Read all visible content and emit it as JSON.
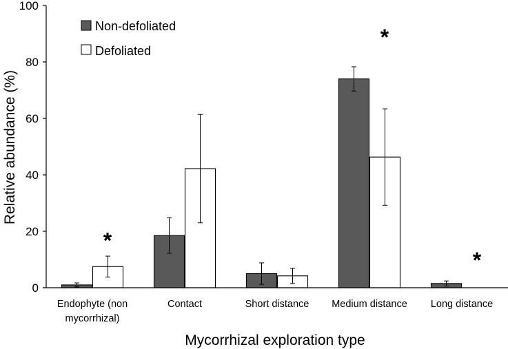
{
  "chart_data": {
    "type": "bar",
    "title": "",
    "xlabel": "Mycorrhizal exploration type",
    "ylabel": "Relative abundance (%)",
    "ylim": [
      0,
      100
    ],
    "yticks": [
      0,
      20,
      40,
      60,
      80,
      100
    ],
    "grid": false,
    "legend_position": "top-left",
    "categories": [
      [
        "Endophyte (non",
        "mycorrhizal)"
      ],
      [
        "Contact"
      ],
      [
        "Short distance"
      ],
      [
        "Medium distance"
      ],
      [
        "Long distance"
      ]
    ],
    "series": [
      {
        "name": "Non-defoliated",
        "color": "#595959",
        "values": [
          1.0,
          18.5,
          5.0,
          74.0,
          1.5
        ],
        "errors": [
          0.7,
          6.3,
          3.8,
          4.3,
          0.9
        ]
      },
      {
        "name": "Defoliated",
        "color": "#ffffff",
        "values": [
          7.5,
          42.2,
          4.2,
          46.3,
          0
        ],
        "errors": [
          3.7,
          19.2,
          2.7,
          17.1,
          0
        ]
      }
    ],
    "annotations": [
      {
        "category_index": 0,
        "text": "*",
        "y": 17
      },
      {
        "category_index": 3,
        "text": "*",
        "y": 89
      },
      {
        "category_index": 4,
        "text": "*",
        "y": 10
      }
    ]
  }
}
